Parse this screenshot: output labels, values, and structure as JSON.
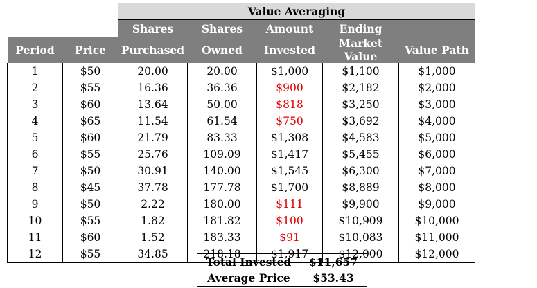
{
  "table": {
    "title": "Value Averaging",
    "headers_top": [
      "",
      "",
      "Shares",
      "Shares",
      "Amount",
      "Ending",
      ""
    ],
    "headers_bottom": [
      "Period",
      "Price",
      "Purchased",
      "Owned",
      "Invested",
      "Market Value",
      "Value Path"
    ],
    "rows": [
      {
        "period": "1",
        "price": "$50",
        "purchased": "20.00",
        "owned": "20.00",
        "invested": "$1,000",
        "market": "$1,100",
        "path": "$1,000",
        "red": false
      },
      {
        "period": "2",
        "price": "$55",
        "purchased": "16.36",
        "owned": "36.36",
        "invested": "$900",
        "market": "$2,182",
        "path": "$2,000",
        "red": true
      },
      {
        "period": "3",
        "price": "$60",
        "purchased": "13.64",
        "owned": "50.00",
        "invested": "$818",
        "market": "$3,250",
        "path": "$3,000",
        "red": true
      },
      {
        "period": "4",
        "price": "$65",
        "purchased": "11.54",
        "owned": "61.54",
        "invested": "$750",
        "market": "$3,692",
        "path": "$4,000",
        "red": true
      },
      {
        "period": "5",
        "price": "$60",
        "purchased": "21.79",
        "owned": "83.33",
        "invested": "$1,308",
        "market": "$4,583",
        "path": "$5,000",
        "red": false
      },
      {
        "period": "6",
        "price": "$55",
        "purchased": "25.76",
        "owned": "109.09",
        "invested": "$1,417",
        "market": "$5,455",
        "path": "$6,000",
        "red": false
      },
      {
        "period": "7",
        "price": "$50",
        "purchased": "30.91",
        "owned": "140.00",
        "invested": "$1,545",
        "market": "$6,300",
        "path": "$7,000",
        "red": false
      },
      {
        "period": "8",
        "price": "$45",
        "purchased": "37.78",
        "owned": "177.78",
        "invested": "$1,700",
        "market": "$8,889",
        "path": "$8,000",
        "red": false
      },
      {
        "period": "9",
        "price": "$50",
        "purchased": "2.22",
        "owned": "180.00",
        "invested": "$111",
        "market": "$9,900",
        "path": "$9,000",
        "red": true
      },
      {
        "period": "10",
        "price": "$55",
        "purchased": "1.82",
        "owned": "181.82",
        "invested": "$100",
        "market": "$10,909",
        "path": "$10,000",
        "red": true
      },
      {
        "period": "11",
        "price": "$60",
        "purchased": "1.52",
        "owned": "183.33",
        "invested": "$91",
        "market": "$10,083",
        "path": "$11,000",
        "red": true
      },
      {
        "period": "12",
        "price": "$55",
        "purchased": "34.85",
        "owned": "218.18",
        "invested": "$1,917",
        "market": "$12,000",
        "path": "$12,000",
        "red": false
      }
    ]
  },
  "summary": {
    "total_label": "Total Invested",
    "total_value": "$11,657",
    "avg_label": "Average Price",
    "avg_value": "$53.43"
  },
  "colors": {
    "header_bg": "#7f7f7f",
    "banner_bg": "#d9d9d9",
    "negative_text": "#e00000"
  }
}
